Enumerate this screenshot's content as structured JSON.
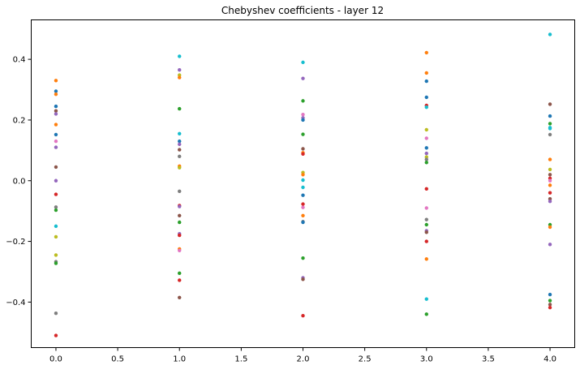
{
  "chart_data": {
    "type": "scatter",
    "title": "Chebyshev coefficients - layer 12",
    "xlabel": "",
    "ylabel": "",
    "xlim": [
      -0.2,
      4.2
    ],
    "ylim": [
      -0.55,
      0.53
    ],
    "xticks": [
      0.0,
      0.5,
      1.0,
      1.5,
      2.0,
      2.5,
      3.0,
      3.5,
      4.0
    ],
    "xtick_labels": [
      "0.0",
      "0.5",
      "1.0",
      "1.5",
      "2.0",
      "2.5",
      "3.0",
      "3.5",
      "4.0"
    ],
    "yticks": [
      -0.4,
      -0.2,
      0.0,
      0.2,
      0.4
    ],
    "ytick_labels": [
      "−0.4",
      "−0.2",
      "0.0",
      "0.2",
      "0.4"
    ],
    "grid": false,
    "legend": "none",
    "x": [
      0,
      1,
      2,
      3,
      4
    ],
    "points": [
      {
        "x": 0,
        "y": 0.33,
        "color": "#ff7f0e"
      },
      {
        "x": 0,
        "y": 0.295,
        "color": "#1f77b4"
      },
      {
        "x": 0,
        "y": 0.285,
        "color": "#ff7f0e"
      },
      {
        "x": 0,
        "y": 0.245,
        "color": "#1f77b4"
      },
      {
        "x": 0,
        "y": 0.23,
        "color": "#8c564b"
      },
      {
        "x": 0,
        "y": 0.22,
        "color": "#9467bd"
      },
      {
        "x": 0,
        "y": 0.185,
        "color": "#ff7f0e"
      },
      {
        "x": 0,
        "y": 0.152,
        "color": "#1f77b4"
      },
      {
        "x": 0,
        "y": 0.13,
        "color": "#e377c2"
      },
      {
        "x": 0,
        "y": 0.11,
        "color": "#9467bd"
      },
      {
        "x": 0,
        "y": 0.045,
        "color": "#8c564b"
      },
      {
        "x": 0,
        "y": 0.0,
        "color": "#9467bd"
      },
      {
        "x": 0,
        "y": -0.045,
        "color": "#d62728"
      },
      {
        "x": 0,
        "y": -0.087,
        "color": "#7f7f7f"
      },
      {
        "x": 0,
        "y": -0.097,
        "color": "#2ca02c"
      },
      {
        "x": 0,
        "y": -0.15,
        "color": "#17becf"
      },
      {
        "x": 0,
        "y": -0.185,
        "color": "#bcbd22"
      },
      {
        "x": 0,
        "y": -0.245,
        "color": "#bcbd22"
      },
      {
        "x": 0,
        "y": -0.267,
        "color": "#7f7f7f"
      },
      {
        "x": 0,
        "y": -0.272,
        "color": "#2ca02c"
      },
      {
        "x": 0,
        "y": -0.437,
        "color": "#7f7f7f"
      },
      {
        "x": 0,
        "y": -0.51,
        "color": "#d62728"
      },
      {
        "x": 1,
        "y": 0.41,
        "color": "#17becf"
      },
      {
        "x": 1,
        "y": 0.365,
        "color": "#9467bd"
      },
      {
        "x": 1,
        "y": 0.348,
        "color": "#bcbd22"
      },
      {
        "x": 1,
        "y": 0.34,
        "color": "#ff7f0e"
      },
      {
        "x": 1,
        "y": 0.237,
        "color": "#2ca02c"
      },
      {
        "x": 1,
        "y": 0.155,
        "color": "#17becf"
      },
      {
        "x": 1,
        "y": 0.13,
        "color": "#1f77b4"
      },
      {
        "x": 1,
        "y": 0.12,
        "color": "#9467bd"
      },
      {
        "x": 1,
        "y": 0.102,
        "color": "#8c564b"
      },
      {
        "x": 1,
        "y": 0.08,
        "color": "#7f7f7f"
      },
      {
        "x": 1,
        "y": 0.048,
        "color": "#ff7f0e"
      },
      {
        "x": 1,
        "y": 0.043,
        "color": "#bcbd22"
      },
      {
        "x": 1,
        "y": -0.035,
        "color": "#7f7f7f"
      },
      {
        "x": 1,
        "y": -0.082,
        "color": "#d62728"
      },
      {
        "x": 1,
        "y": -0.085,
        "color": "#9467bd"
      },
      {
        "x": 1,
        "y": -0.115,
        "color": "#8c564b"
      },
      {
        "x": 1,
        "y": -0.137,
        "color": "#2ca02c"
      },
      {
        "x": 1,
        "y": -0.175,
        "color": "#9467bd"
      },
      {
        "x": 1,
        "y": -0.18,
        "color": "#d62728"
      },
      {
        "x": 1,
        "y": -0.225,
        "color": "#ff7f0e"
      },
      {
        "x": 1,
        "y": -0.23,
        "color": "#e377c2"
      },
      {
        "x": 1,
        "y": -0.305,
        "color": "#2ca02c"
      },
      {
        "x": 1,
        "y": -0.328,
        "color": "#d62728"
      },
      {
        "x": 1,
        "y": -0.385,
        "color": "#8c564b"
      },
      {
        "x": 2,
        "y": 0.39,
        "color": "#17becf"
      },
      {
        "x": 2,
        "y": 0.337,
        "color": "#9467bd"
      },
      {
        "x": 2,
        "y": 0.263,
        "color": "#2ca02c"
      },
      {
        "x": 2,
        "y": 0.218,
        "color": "#e377c2"
      },
      {
        "x": 2,
        "y": 0.207,
        "color": "#9467bd"
      },
      {
        "x": 2,
        "y": 0.2,
        "color": "#1f77b4"
      },
      {
        "x": 2,
        "y": 0.153,
        "color": "#2ca02c"
      },
      {
        "x": 2,
        "y": 0.105,
        "color": "#8c564b"
      },
      {
        "x": 2,
        "y": 0.092,
        "color": "#ff7f0e"
      },
      {
        "x": 2,
        "y": 0.088,
        "color": "#d62728"
      },
      {
        "x": 2,
        "y": 0.027,
        "color": "#bcbd22"
      },
      {
        "x": 2,
        "y": 0.02,
        "color": "#ff7f0e"
      },
      {
        "x": 2,
        "y": 0.002,
        "color": "#17becf"
      },
      {
        "x": 2,
        "y": -0.022,
        "color": "#17becf"
      },
      {
        "x": 2,
        "y": -0.048,
        "color": "#1f77b4"
      },
      {
        "x": 2,
        "y": -0.077,
        "color": "#d62728"
      },
      {
        "x": 2,
        "y": -0.088,
        "color": "#e377c2"
      },
      {
        "x": 2,
        "y": -0.115,
        "color": "#ff7f0e"
      },
      {
        "x": 2,
        "y": -0.135,
        "color": "#7f7f7f"
      },
      {
        "x": 2,
        "y": -0.137,
        "color": "#1f77b4"
      },
      {
        "x": 2,
        "y": -0.255,
        "color": "#2ca02c"
      },
      {
        "x": 2,
        "y": -0.32,
        "color": "#9467bd"
      },
      {
        "x": 2,
        "y": -0.325,
        "color": "#8c564b"
      },
      {
        "x": 2,
        "y": -0.445,
        "color": "#d62728"
      },
      {
        "x": 3,
        "y": 0.422,
        "color": "#ff7f0e"
      },
      {
        "x": 3,
        "y": 0.355,
        "color": "#ff7f0e"
      },
      {
        "x": 3,
        "y": 0.328,
        "color": "#1f77b4"
      },
      {
        "x": 3,
        "y": 0.275,
        "color": "#1f77b4"
      },
      {
        "x": 3,
        "y": 0.248,
        "color": "#d62728"
      },
      {
        "x": 3,
        "y": 0.242,
        "color": "#17becf"
      },
      {
        "x": 3,
        "y": 0.168,
        "color": "#bcbd22"
      },
      {
        "x": 3,
        "y": 0.14,
        "color": "#e377c2"
      },
      {
        "x": 3,
        "y": 0.108,
        "color": "#1f77b4"
      },
      {
        "x": 3,
        "y": 0.09,
        "color": "#9467bd"
      },
      {
        "x": 3,
        "y": 0.078,
        "color": "#bcbd22"
      },
      {
        "x": 3,
        "y": 0.07,
        "color": "#7f7f7f"
      },
      {
        "x": 3,
        "y": 0.06,
        "color": "#2ca02c"
      },
      {
        "x": 3,
        "y": -0.027,
        "color": "#d62728"
      },
      {
        "x": 3,
        "y": -0.09,
        "color": "#e377c2"
      },
      {
        "x": 3,
        "y": -0.128,
        "color": "#7f7f7f"
      },
      {
        "x": 3,
        "y": -0.145,
        "color": "#2ca02c"
      },
      {
        "x": 3,
        "y": -0.165,
        "color": "#9467bd"
      },
      {
        "x": 3,
        "y": -0.17,
        "color": "#8c564b"
      },
      {
        "x": 3,
        "y": -0.2,
        "color": "#d62728"
      },
      {
        "x": 3,
        "y": -0.258,
        "color": "#ff7f0e"
      },
      {
        "x": 3,
        "y": -0.39,
        "color": "#17becf"
      },
      {
        "x": 3,
        "y": -0.44,
        "color": "#2ca02c"
      },
      {
        "x": 4,
        "y": 0.482,
        "color": "#17becf"
      },
      {
        "x": 4,
        "y": 0.252,
        "color": "#8c564b"
      },
      {
        "x": 4,
        "y": 0.213,
        "color": "#1f77b4"
      },
      {
        "x": 4,
        "y": 0.188,
        "color": "#2ca02c"
      },
      {
        "x": 4,
        "y": 0.175,
        "color": "#17becf"
      },
      {
        "x": 4,
        "y": 0.172,
        "color": "#17becf"
      },
      {
        "x": 4,
        "y": 0.152,
        "color": "#7f7f7f"
      },
      {
        "x": 4,
        "y": 0.07,
        "color": "#ff7f0e"
      },
      {
        "x": 4,
        "y": 0.037,
        "color": "#bcbd22"
      },
      {
        "x": 4,
        "y": 0.02,
        "color": "#8c564b"
      },
      {
        "x": 4,
        "y": 0.008,
        "color": "#d62728"
      },
      {
        "x": 4,
        "y": 0.0,
        "color": "#e377c2"
      },
      {
        "x": 4,
        "y": -0.015,
        "color": "#ff7f0e"
      },
      {
        "x": 4,
        "y": -0.04,
        "color": "#d62728"
      },
      {
        "x": 4,
        "y": -0.06,
        "color": "#8c564b"
      },
      {
        "x": 4,
        "y": -0.068,
        "color": "#9467bd"
      },
      {
        "x": 4,
        "y": -0.145,
        "color": "#2ca02c"
      },
      {
        "x": 4,
        "y": -0.153,
        "color": "#ff7f0e"
      },
      {
        "x": 4,
        "y": -0.21,
        "color": "#9467bd"
      },
      {
        "x": 4,
        "y": -0.375,
        "color": "#1f77b4"
      },
      {
        "x": 4,
        "y": -0.395,
        "color": "#2ca02c"
      },
      {
        "x": 4,
        "y": -0.408,
        "color": "#8c564b"
      },
      {
        "x": 4,
        "y": -0.418,
        "color": "#d62728"
      }
    ]
  }
}
